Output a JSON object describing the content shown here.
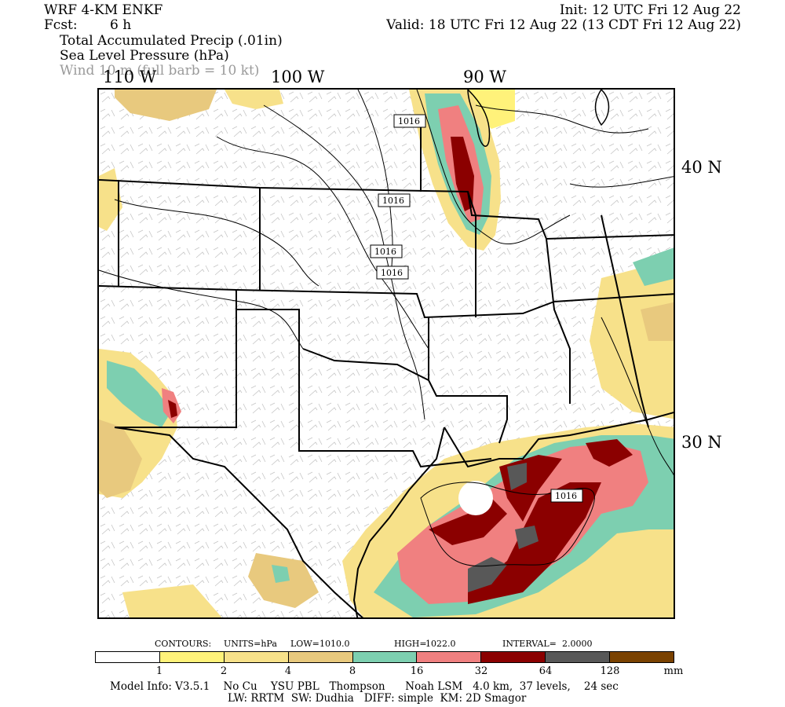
{
  "header": {
    "model": "WRF 4-KM ENKF",
    "fcst_label": "Fcst:",
    "fcst_value": "6 h",
    "init": "Init: 12 UTC Fri 12 Aug 22",
    "valid": "Valid: 18 UTC Fri 12 Aug 22 (13 CDT Fri 12 Aug 22)",
    "field1": "Total Accumulated Precip (.01in)",
    "field2": "Sea Level Pressure (hPa)",
    "field3": "Wind 10 m (full barb = 10 kt)"
  },
  "axes": {
    "lon_labels": [
      "110 W",
      "100 W",
      "90 W"
    ],
    "lat_labels": [
      "40 N",
      "30 N"
    ]
  },
  "contour_labels": [
    "1016",
    "1016",
    "1016",
    "1016",
    "1016"
  ],
  "contour_info": {
    "contours": "CONTOURS:",
    "units": "UNITS=hPa",
    "low": "LOW=",
    "low_value": "1010.0",
    "high": "HIGH=",
    "high_value": "1022.0",
    "interval": "INTERVAL=",
    "interval_value": "2.0000"
  },
  "colorbar": {
    "colors": [
      "#ffffff",
      "#fff27a",
      "#f7e18a",
      "#e8c97e",
      "#7dcfb0",
      "#f08080",
      "#8b0000",
      "#585858",
      "#7a4200"
    ],
    "labels": [
      "1",
      "2",
      "4",
      "8",
      "16",
      "32",
      "64",
      "128"
    ],
    "unit": "mm"
  },
  "footer": {
    "line1": "Model Info: V3.5.1    No Cu    YSU PBL   Thompson      Noah LSM   4.0 km,  37 levels,    24 sec",
    "line2": "LW: RRTM  SW: Dudhia   DIFF: simple  KM: 2D Smagor"
  }
}
